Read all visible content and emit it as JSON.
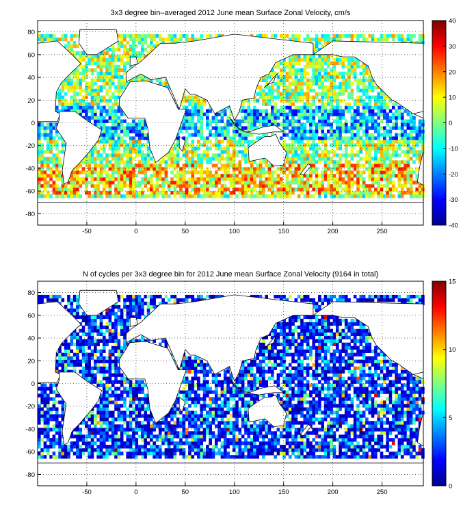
{
  "chart_data": [
    {
      "type": "heatmap",
      "title": "3x3 degree bin–averaged 2012 June mean Surface Zonal Velocity, cm/s",
      "xlabel": "",
      "ylabel": "",
      "xlim": [
        -100,
        292
      ],
      "ylim": [
        -90,
        90
      ],
      "x_ticks": [
        "-50",
        "0",
        "50",
        "100",
        "150",
        "200",
        "250"
      ],
      "y_ticks": [
        "80",
        "60",
        "40",
        "20",
        "0",
        "-20",
        "-40",
        "-60",
        "-80"
      ],
      "grid": true,
      "bin_size_deg": 3,
      "colorbar": {
        "min": -40,
        "max": 40,
        "ticks": [
          "40",
          "30",
          "20",
          "10",
          "0",
          "-10",
          "-20",
          "-30",
          "-40"
        ],
        "colormap": "jet"
      },
      "seed": 11
    },
    {
      "type": "heatmap",
      "title": "N of cycles per 3x3 degree bin for 2012 June mean Surface Zonal Velocity (9164 in total)",
      "xlabel": "",
      "ylabel": "",
      "xlim": [
        -100,
        292
      ],
      "ylim": [
        -90,
        90
      ],
      "x_ticks": [
        "-50",
        "0",
        "50",
        "100",
        "150",
        "200",
        "250"
      ],
      "y_ticks": [
        "80",
        "60",
        "40",
        "20",
        "0",
        "-20",
        "-40",
        "-60",
        "-80"
      ],
      "grid": true,
      "bin_size_deg": 3,
      "colorbar": {
        "min": 0,
        "max": 15,
        "ticks": [
          "15",
          "10",
          "5",
          "0"
        ],
        "colormap": "jet"
      },
      "seed": 29
    }
  ]
}
